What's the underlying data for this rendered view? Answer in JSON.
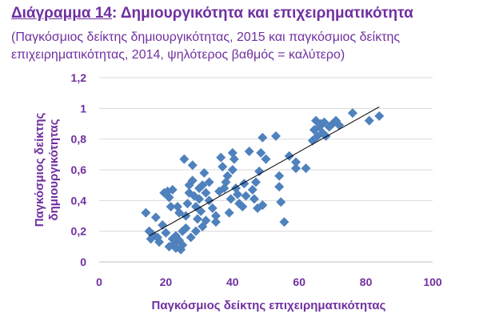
{
  "title": {
    "number": "Διάγραμμα 14",
    "separator": ":",
    "text": " Δημιουργικότητα και επιχειρηματικότητα"
  },
  "subtitle": "(Παγκόσμιος δείκτης δημιουργικότητας, 2015 και παγκόσμιος δείκτης επιχειρηματικότητας, 2014, ψηλότερος βαθμός = καλύτερο)",
  "colors": {
    "accent": "#7030a0",
    "marker": "#4f81bd",
    "grid": "#d9d9d9",
    "trend": "#000000"
  },
  "chart_data": {
    "type": "scatter",
    "xlabel": "Παγκόσμιος δείκτης επιχειρηματικότητας",
    "ylabel_lines": [
      "Παγκόσμιος δείκτης",
      "δημιουργικότητας"
    ],
    "xlim": [
      0,
      100
    ],
    "ylim": [
      0,
      1.2
    ],
    "xticks": [
      0,
      20,
      40,
      60,
      80,
      100
    ],
    "yticks": [
      0,
      0.2,
      0.4,
      0.6,
      0.8,
      1,
      1.2
    ],
    "xtick_labels": [
      "0",
      "20",
      "40",
      "60",
      "80",
      "100"
    ],
    "ytick_labels": [
      "0",
      "0,2",
      "0,4",
      "0,6",
      "0,8",
      "1",
      "1,2"
    ],
    "grid": "horizontal",
    "trendline": {
      "x": [
        15,
        84
      ],
      "y": [
        0.17,
        1.01
      ]
    },
    "points": [
      [
        14,
        0.32
      ],
      [
        15,
        0.2
      ],
      [
        15.5,
        0.15
      ],
      [
        16,
        0.18
      ],
      [
        17,
        0.29
      ],
      [
        17.5,
        0.16
      ],
      [
        18,
        0.13
      ],
      [
        19,
        0.24
      ],
      [
        19.5,
        0.45
      ],
      [
        20,
        0.19
      ],
      [
        20.5,
        0.46
      ],
      [
        21,
        0.42
      ],
      [
        21,
        0.1
      ],
      [
        21.5,
        0.36
      ],
      [
        22,
        0.47
      ],
      [
        22,
        0.15
      ],
      [
        22.5,
        0.12
      ],
      [
        23,
        0.09
      ],
      [
        23,
        0.17
      ],
      [
        23.5,
        0.36
      ],
      [
        24,
        0.32
      ],
      [
        24,
        0.14
      ],
      [
        24.5,
        0.08
      ],
      [
        25,
        0.2
      ],
      [
        25,
        0.11
      ],
      [
        25.5,
        0.67
      ],
      [
        26,
        0.3
      ],
      [
        26,
        0.22
      ],
      [
        26.5,
        0.38
      ],
      [
        27,
        0.5
      ],
      [
        27,
        0.45
      ],
      [
        27.5,
        0.16
      ],
      [
        28,
        0.53
      ],
      [
        28,
        0.63
      ],
      [
        28.5,
        0.43
      ],
      [
        29,
        0.2
      ],
      [
        29,
        0.36
      ],
      [
        29.5,
        0.28
      ],
      [
        30,
        0.48
      ],
      [
        30,
        0.41
      ],
      [
        30.5,
        0.33
      ],
      [
        31,
        0.23
      ],
      [
        31,
        0.5
      ],
      [
        31.5,
        0.58
      ],
      [
        32,
        0.45
      ],
      [
        32,
        0.27
      ],
      [
        33,
        0.4
      ],
      [
        33,
        0.52
      ],
      [
        34,
        0.35
      ],
      [
        35,
        0.3
      ],
      [
        35,
        0.26
      ],
      [
        36,
        0.46
      ],
      [
        36.5,
        0.68
      ],
      [
        37,
        0.62
      ],
      [
        37.5,
        0.48
      ],
      [
        38,
        0.52
      ],
      [
        38.5,
        0.56
      ],
      [
        39,
        0.32
      ],
      [
        39.5,
        0.41
      ],
      [
        40,
        0.71
      ],
      [
        40,
        0.6
      ],
      [
        40.5,
        0.67
      ],
      [
        41,
        0.48
      ],
      [
        41.5,
        0.44
      ],
      [
        42,
        0.38
      ],
      [
        43,
        0.36
      ],
      [
        43.5,
        0.51
      ],
      [
        44,
        0.43
      ],
      [
        45,
        0.72
      ],
      [
        46,
        0.47
      ],
      [
        46.5,
        0.41
      ],
      [
        47,
        0.52
      ],
      [
        47.5,
        0.35
      ],
      [
        48,
        0.59
      ],
      [
        48.5,
        0.71
      ],
      [
        49,
        0.37
      ],
      [
        49,
        0.81
      ],
      [
        50,
        0.67
      ],
      [
        53,
        0.82
      ],
      [
        54,
        0.49
      ],
      [
        54,
        0.56
      ],
      [
        54.5,
        0.39
      ],
      [
        55.5,
        0.26
      ],
      [
        57,
        0.69
      ],
      [
        59,
        0.65
      ],
      [
        59,
        0.61
      ],
      [
        62,
        0.61
      ],
      [
        64,
        0.79
      ],
      [
        64.5,
        0.86
      ],
      [
        65,
        0.92
      ],
      [
        65.5,
        0.82
      ],
      [
        66,
        0.88
      ],
      [
        66.5,
        0.9
      ],
      [
        67,
        0.84
      ],
      [
        67.5,
        0.91
      ],
      [
        68,
        0.82
      ],
      [
        69,
        0.88
      ],
      [
        70,
        0.9
      ],
      [
        71,
        0.92
      ],
      [
        72,
        0.89
      ],
      [
        76,
        0.97
      ],
      [
        81,
        0.92
      ],
      [
        84,
        0.95
      ]
    ]
  }
}
